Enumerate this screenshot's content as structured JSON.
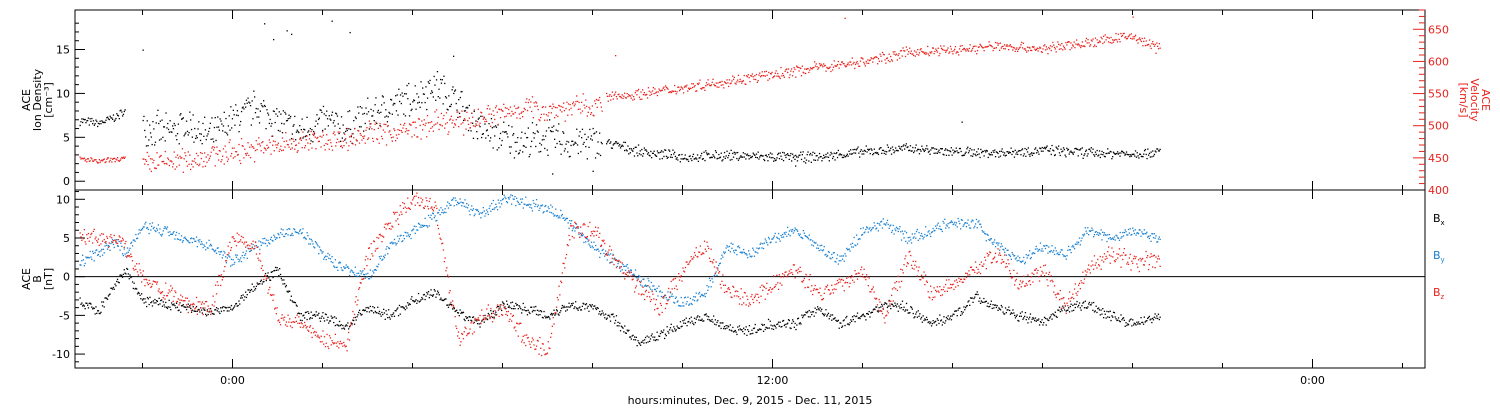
{
  "colors": {
    "axis": "#000000",
    "density": "#000000",
    "velocity": "#e8231d",
    "bx": "#000000",
    "by": "#1a80d0",
    "bz": "#e8231d"
  },
  "x_axis": {
    "label": "hours:minutes, Dec.  9, 2015 - Dec. 11, 2015",
    "ticks": [
      {
        "hour": 0,
        "label": "0:00"
      },
      {
        "hour": 12,
        "label": "12:00"
      },
      {
        "hour": 24,
        "label": "0:00"
      }
    ],
    "range_hours": [
      -3.5,
      26.5
    ],
    "minor_tick_hours": 2
  },
  "chart_data": [
    {
      "type": "scatter",
      "title": "",
      "left_axis": {
        "label_lines": [
          "ACE",
          "Ion Density",
          "[cm⁻³]"
        ],
        "ylim": [
          -1,
          19.5
        ],
        "ticks": [
          0,
          5,
          10,
          15
        ],
        "tick_labels": [
          "0",
          "5",
          "10",
          "15"
        ]
      },
      "right_axis": {
        "label_lines": [
          "ACE",
          "Velocity",
          "[km/s]"
        ],
        "ylim": [
          400,
          680
        ],
        "ticks": [
          400,
          450,
          500,
          550,
          600,
          650
        ],
        "tick_labels": [
          "400",
          "450",
          "500",
          "550",
          "600",
          "650"
        ]
      },
      "series": [
        {
          "name": "",
          "axis": "left",
          "color_key": "density",
          "segments": [
            {
              "x": [
                -3.4,
                -3.0,
                -2.6,
                -2.4
              ],
              "y": [
                7.0,
                6.6,
                7.4,
                8.0
              ],
              "spread": 0.6
            },
            {
              "x": [
                -2.0,
                -1.5,
                -1.0,
                -0.5,
                0.0,
                0.5,
                1.0,
                1.5,
                2.0,
                2.5,
                3.0,
                3.5,
                4.0,
                4.5,
                5.0,
                5.5,
                6.0,
                6.5,
                7.0,
                7.5,
                8.0,
                8.2
              ],
              "y": [
                6.5,
                5.5,
                6.5,
                5.0,
                7.0,
                8.5,
                7.0,
                5.5,
                7.0,
                6.0,
                7.5,
                8.5,
                9.5,
                11.0,
                9.0,
                6.0,
                5.0,
                4.5,
                5.0,
                4.5,
                4.5,
                4.2
              ],
              "spread": 2.4
            },
            {
              "x": [
                8.3,
                9.0,
                10.0,
                11.0,
                12.0,
                13.0,
                14.0,
                15.0,
                16.0,
                17.0,
                18.0,
                19.0,
                20.0,
                20.6
              ],
              "y": [
                4.5,
                3.5,
                2.8,
                3.0,
                2.8,
                2.8,
                3.4,
                3.8,
                3.4,
                3.3,
                3.6,
                3.3,
                3.2,
                3.4
              ],
              "spread": 0.7
            }
          ],
          "outliers": {
            "x": [
              0.7,
              1.2,
              2.2,
              2.6,
              0.9,
              1.3,
              -2.0,
              4.9,
              16.2,
              8.0,
              7.1,
              12.5
            ],
            "y": [
              18.0,
              17.2,
              18.3,
              17.0,
              16.2,
              16.8,
              15.0,
              14.3,
              6.8,
              1.2,
              0.9,
              1.8
            ]
          }
        },
        {
          "name": "",
          "axis": "right",
          "color_key": "velocity",
          "segments": [
            {
              "x": [
                -3.4,
                -3.0,
                -2.6,
                -2.4
              ],
              "y": [
                450,
                445,
                448,
                450
              ],
              "spread": 5
            },
            {
              "x": [
                -2.0,
                -1.5,
                -1.0,
                -0.5,
                0.0,
                0.5,
                1.0,
                1.5,
                2.0,
                2.5,
                3.0,
                3.5,
                4.0,
                4.5,
                5.0,
                5.5,
                6.0,
                6.5,
                7.0,
                7.5,
                8.0,
                8.2
              ],
              "y": [
                440,
                445,
                448,
                455,
                460,
                465,
                470,
                475,
                478,
                480,
                490,
                490,
                495,
                505,
                505,
                515,
                520,
                530,
                525,
                530,
                530,
                535
              ],
              "spread": 22
            },
            {
              "x": [
                8.3,
                9.0,
                10.0,
                11.0,
                12.0,
                13.0,
                14.0,
                15.0,
                16.0,
                17.0,
                18.0,
                19.0,
                20.0,
                20.6
              ],
              "y": [
                545,
                550,
                560,
                570,
                580,
                592,
                600,
                615,
                618,
                625,
                620,
                630,
                640,
                620
              ],
              "spread": 10
            }
          ],
          "outliers": {
            "x": [
              8.5,
              13.6,
              20.0
            ],
            "y": [
              610,
              668,
              670
            ]
          }
        }
      ]
    },
    {
      "type": "scatter",
      "title": "",
      "left_axis": {
        "label_lines": [
          "ACE",
          "B",
          "[nT]"
        ],
        "ylim": [
          -11.8,
          11.2
        ],
        "ticks": [
          -10,
          -5,
          0,
          5,
          10
        ],
        "tick_labels": [
          "-10",
          "-5",
          "0",
          "5",
          "10"
        ]
      },
      "legend": [
        {
          "label": "B",
          "sub": "x",
          "color_key": "bx"
        },
        {
          "label": "B",
          "sub": "y",
          "color_key": "by"
        },
        {
          "label": "B",
          "sub": "z",
          "color_key": "bz"
        }
      ],
      "series": [
        {
          "name": "Bx",
          "color_key": "bx",
          "x": [
            -3.4,
            -3.0,
            -2.6,
            -2.4,
            -2.0,
            -1.5,
            -1.0,
            -0.5,
            0.0,
            0.5,
            1.0,
            1.5,
            2.0,
            2.5,
            3.0,
            3.5,
            4.0,
            4.5,
            5.0,
            5.5,
            6.0,
            6.5,
            7.0,
            7.5,
            8.0,
            8.5,
            9.0,
            9.5,
            10.0,
            10.5,
            11.0,
            11.5,
            12.0,
            12.5,
            13.0,
            13.5,
            14.0,
            14.5,
            15.0,
            15.5,
            16.0,
            16.5,
            17.0,
            17.5,
            18.0,
            18.5,
            19.0,
            19.5,
            20.0,
            20.6
          ],
          "y": [
            -3.0,
            -4.5,
            -1.0,
            1.0,
            -3.0,
            -3.5,
            -4.0,
            -4.5,
            -4.0,
            -1.0,
            1.0,
            -5.0,
            -5.0,
            -6.5,
            -4.0,
            -5.0,
            -3.0,
            -2.0,
            -4.5,
            -6.0,
            -3.5,
            -4.0,
            -5.0,
            -3.5,
            -4.0,
            -5.5,
            -8.5,
            -7.5,
            -6.0,
            -5.0,
            -6.5,
            -7.0,
            -6.0,
            -6.0,
            -4.0,
            -6.0,
            -5.0,
            -3.5,
            -4.0,
            -6.0,
            -5.0,
            -2.5,
            -4.0,
            -5.0,
            -6.0,
            -4.0,
            -3.5,
            -5.0,
            -6.0,
            -5.0
          ],
          "spread": 0.8
        },
        {
          "name": "By",
          "color_key": "by",
          "x": [
            -3.4,
            -3.0,
            -2.6,
            -2.4,
            -2.0,
            -1.5,
            -1.0,
            -0.5,
            0.0,
            0.5,
            1.0,
            1.5,
            2.0,
            2.5,
            3.0,
            3.5,
            4.0,
            4.5,
            5.0,
            5.5,
            6.0,
            6.5,
            7.0,
            7.5,
            8.0,
            8.5,
            9.0,
            9.5,
            10.0,
            10.5,
            11.0,
            11.5,
            12.0,
            12.5,
            13.0,
            13.5,
            14.0,
            14.5,
            15.0,
            15.5,
            16.0,
            16.5,
            17.0,
            17.5,
            18.0,
            18.5,
            19.0,
            19.5,
            20.0,
            20.6
          ],
          "y": [
            2.0,
            3.0,
            4.5,
            3.0,
            6.5,
            6.0,
            5.0,
            4.0,
            2.0,
            4.0,
            5.5,
            6.0,
            3.0,
            1.0,
            0.0,
            4.0,
            6.0,
            8.0,
            10.0,
            8.0,
            10.0,
            9.5,
            9.0,
            7.0,
            4.0,
            2.0,
            0.0,
            -2.0,
            -3.5,
            -2.0,
            4.0,
            3.0,
            5.0,
            6.0,
            4.0,
            2.0,
            6.0,
            7.0,
            5.0,
            6.0,
            7.0,
            7.0,
            4.0,
            2.0,
            4.0,
            3.0,
            6.0,
            5.0,
            6.0,
            5.0
          ],
          "spread": 0.9
        },
        {
          "name": "Bz",
          "color_key": "bz",
          "x": [
            -3.4,
            -3.0,
            -2.6,
            -2.4,
            -2.0,
            -1.5,
            -1.0,
            -0.5,
            0.0,
            0.5,
            1.0,
            1.5,
            2.0,
            2.5,
            3.0,
            3.5,
            4.0,
            4.5,
            5.0,
            5.5,
            6.0,
            6.5,
            7.0,
            7.5,
            8.0,
            8.5,
            9.0,
            9.5,
            10.0,
            10.5,
            11.0,
            11.5,
            12.0,
            12.5,
            13.0,
            13.5,
            14.0,
            14.5,
            15.0,
            15.5,
            16.0,
            16.5,
            17.0,
            17.5,
            18.0,
            18.5,
            19.0,
            19.5,
            20.0,
            20.6
          ],
          "y": [
            5.5,
            5.0,
            5.0,
            4.0,
            0.0,
            -2.0,
            -3.5,
            -4.0,
            5.0,
            4.0,
            -5.0,
            -6.0,
            -8.0,
            -9.0,
            3.0,
            7.0,
            10.0,
            9.0,
            -8.0,
            -5.0,
            -4.0,
            -8.0,
            -9.5,
            6.0,
            6.0,
            2.0,
            -1.0,
            -4.0,
            1.0,
            4.0,
            -2.0,
            -3.0,
            -1.0,
            1.0,
            -2.0,
            -1.0,
            1.0,
            -5.0,
            3.0,
            -2.0,
            -1.0,
            1.0,
            3.0,
            -1.0,
            1.0,
            -4.0,
            1.0,
            3.0,
            2.0,
            2.0
          ],
          "spread": 1.4
        }
      ]
    }
  ]
}
